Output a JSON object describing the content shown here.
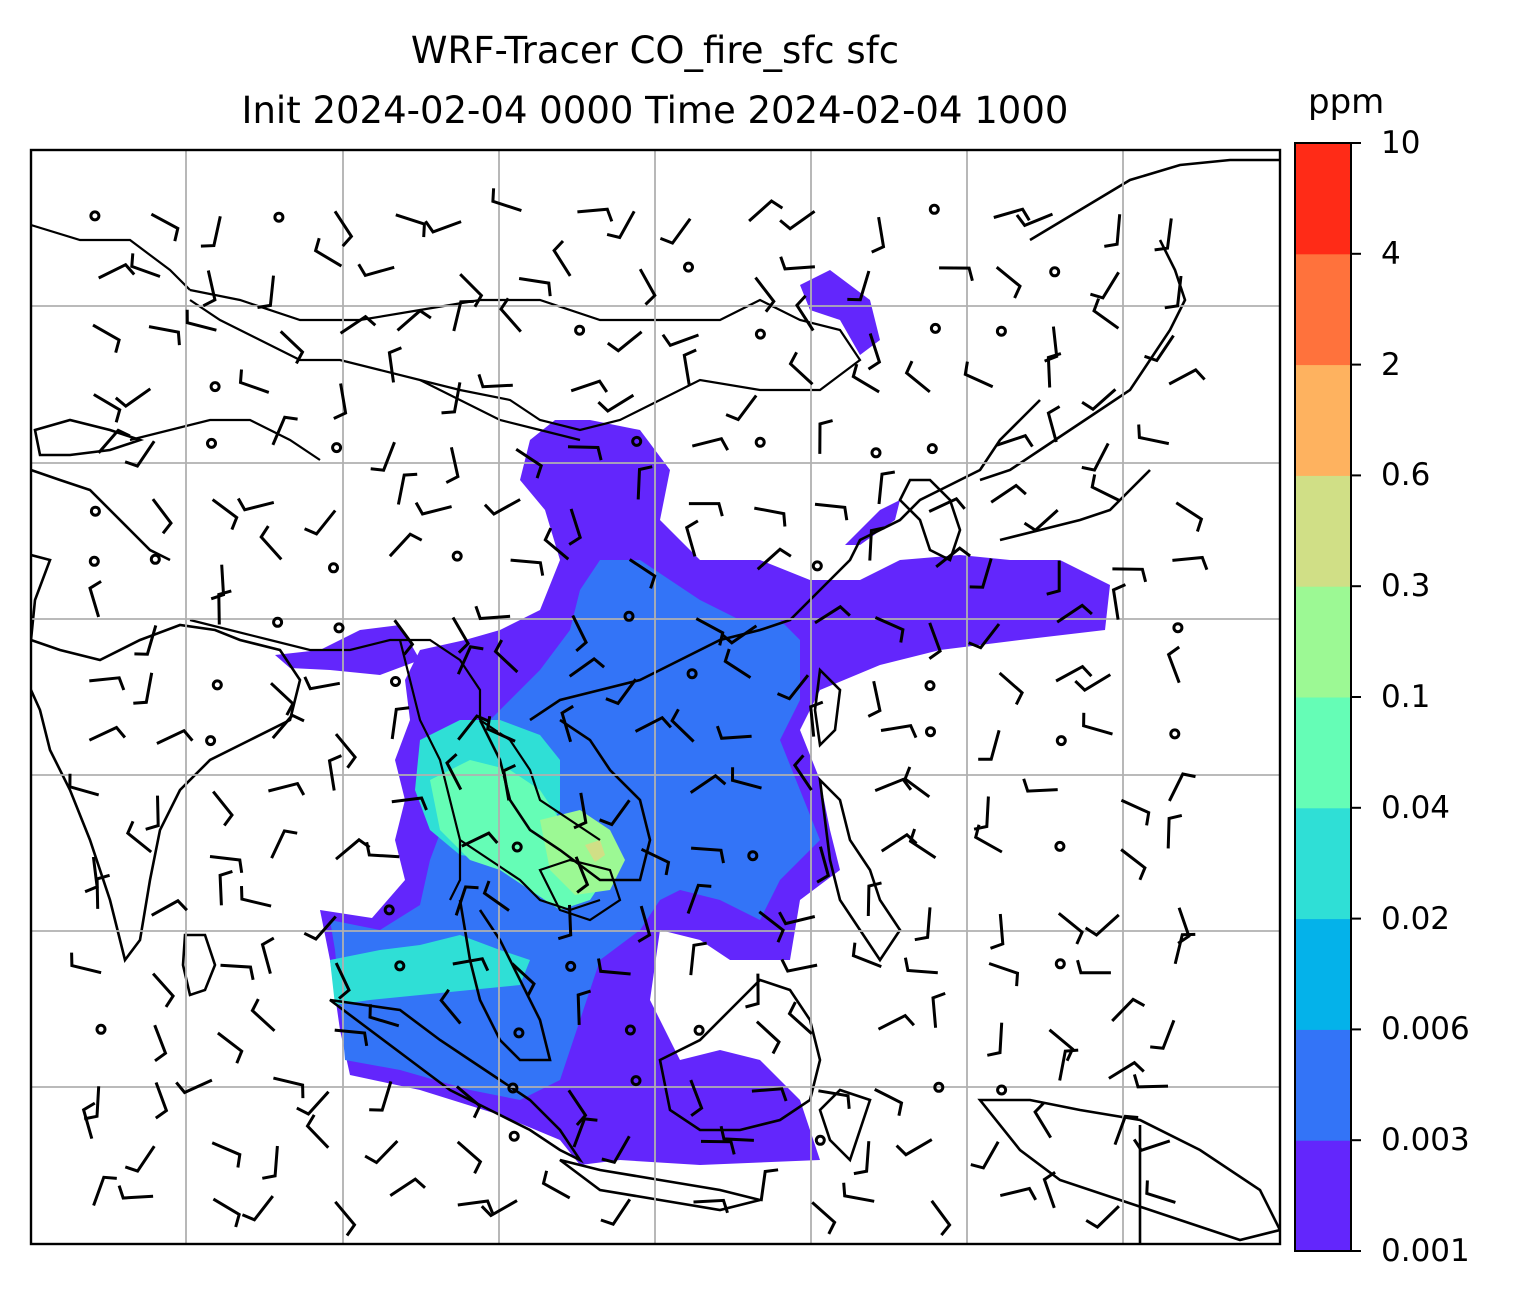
{
  "title_line1": "WRF-Tracer CO_fire_sfc sfc",
  "title_line2": "Init 2024-02-04 0000 Time 2024-02-04 1000",
  "colorbar": {
    "unit": "ppm",
    "levels": [
      "0.001",
      "0.003",
      "0.006",
      "0.02",
      "0.04",
      "0.1",
      "0.3",
      "0.6",
      "2",
      "4",
      "10"
    ],
    "colors": [
      "#6326fc",
      "#3374f7",
      "#04b2ea",
      "#2fdfd6",
      "#65fdb6",
      "#9cf994",
      "#d0df86",
      "#feb25f",
      "#ff723c",
      "#ff2b17"
    ]
  },
  "map_features": [
    "coastlines",
    "country-borders",
    "lat-lon-gridlines",
    "wind-barbs",
    "CO-fire-tracer-fill"
  ]
}
